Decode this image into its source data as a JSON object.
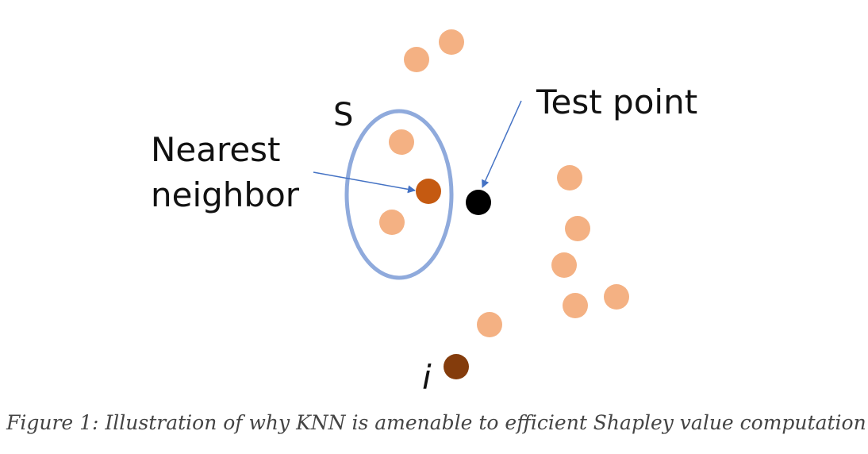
{
  "diagram": {
    "set_label": "S",
    "nearest_neighbor_label": [
      "Nearest",
      "neighbor"
    ],
    "test_point_label": "Test point",
    "point_i_label": "i"
  },
  "caption": "Figure 1: Illustration of why KNN is amenable to efficient Shapley value computation."
}
